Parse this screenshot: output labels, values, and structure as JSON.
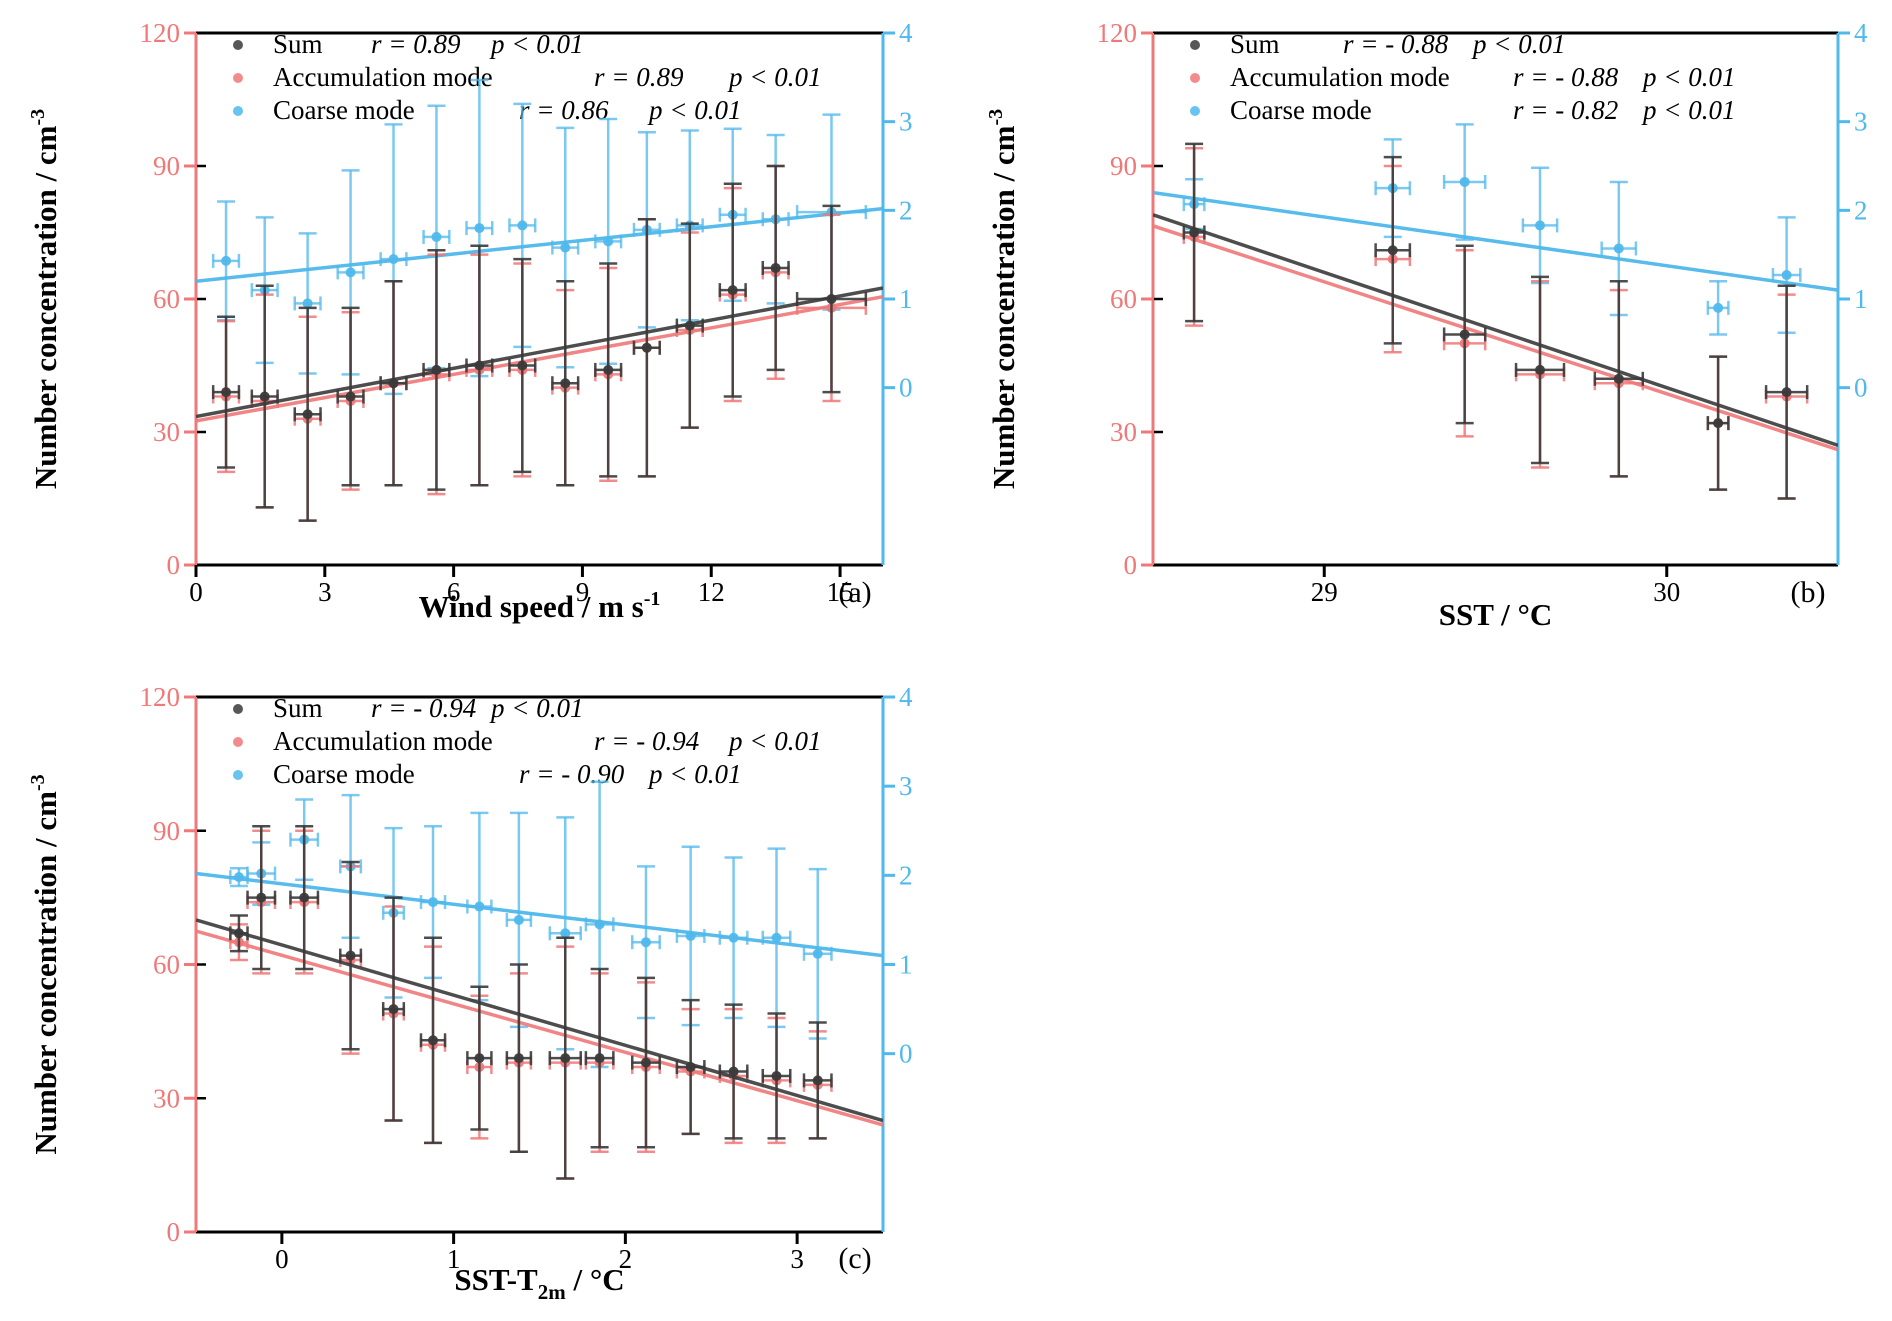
{
  "colors": {
    "sum": "#3a3a3a",
    "accumulation": "#f07878",
    "coarse": "#4fb8ec",
    "left_axis": "#f07878",
    "right_axis": "#4fb8ec",
    "frame": "#000000"
  },
  "chart_data": [
    {
      "type": "scatter",
      "panel_label": "(a)",
      "xlabel": "Wind speed / m s",
      "xlabel_sup": "-1",
      "xlabel_sub": "",
      "xlabel_suffix": "",
      "ylabel": "Number concentration / cm",
      "ylabel_sup": "-3",
      "xlim": [
        0,
        16
      ],
      "xticks": [
        0,
        3,
        6,
        9,
        12,
        15
      ],
      "ylim_left": [
        0,
        120
      ],
      "yticks_left": [
        0,
        30,
        60,
        90,
        120
      ],
      "ylim_right": [
        -2,
        4
      ],
      "yticks_right": [
        0,
        1,
        2,
        3,
        4
      ],
      "legend": [
        {
          "name": "Sum",
          "r": "r = 0.89",
          "p": "p < 0.01"
        },
        {
          "name": "Accumulation mode",
          "r": "r = 0.89",
          "p": "p < 0.01"
        },
        {
          "name": "Coarse mode",
          "r": "r = 0.86",
          "p": "p < 0.01"
        }
      ],
      "series": [
        {
          "key": "sum",
          "axis": "left",
          "x": [
            0.7,
            1.6,
            2.6,
            3.6,
            4.6,
            5.6,
            6.6,
            7.6,
            8.6,
            9.6,
            10.5,
            11.5,
            12.5,
            13.5,
            14.8
          ],
          "y": [
            39,
            38,
            34,
            38,
            41,
            44,
            45,
            45,
            41,
            44,
            49,
            54,
            62,
            67,
            60
          ],
          "yerr": [
            17,
            25,
            24,
            20,
            23,
            27,
            27,
            24,
            23,
            24,
            29,
            23,
            24,
            23,
            21
          ],
          "xerr": [
            0.3,
            0.3,
            0.3,
            0.3,
            0.3,
            0.3,
            0.3,
            0.3,
            0.3,
            0.3,
            0.3,
            0.3,
            0.3,
            0.3,
            0.8
          ],
          "fit": [
            [
              0,
              33.5
            ],
            [
              16,
              62.5
            ]
          ]
        },
        {
          "key": "accumulation",
          "axis": "left",
          "x": [
            0.7,
            1.6,
            2.6,
            3.6,
            4.6,
            5.6,
            6.6,
            7.6,
            8.6,
            9.6,
            10.5,
            11.5,
            12.5,
            13.5,
            14.8
          ],
          "y": [
            38,
            37,
            33,
            37,
            41,
            43,
            44,
            44,
            40,
            43,
            49,
            53,
            61,
            66,
            58
          ],
          "yerr": [
            17,
            24,
            23,
            20,
            23,
            27,
            26,
            24,
            22,
            24,
            29,
            22,
            24,
            24,
            21
          ],
          "xerr": [
            0.3,
            0.3,
            0.3,
            0.3,
            0.3,
            0.3,
            0.3,
            0.3,
            0.3,
            0.3,
            0.3,
            0.3,
            0.3,
            0.3,
            0.8
          ],
          "fit": [
            [
              0,
              32.5
            ],
            [
              16,
              60.5
            ]
          ]
        },
        {
          "key": "coarse",
          "axis": "right",
          "x": [
            0.7,
            1.6,
            2.6,
            3.6,
            4.6,
            5.6,
            6.6,
            7.6,
            8.6,
            9.6,
            10.5,
            11.5,
            12.5,
            13.5,
            14.8
          ],
          "y": [
            1.43,
            1.1,
            0.95,
            1.3,
            1.45,
            1.7,
            1.8,
            1.83,
            1.58,
            1.65,
            1.78,
            1.83,
            1.95,
            1.9,
            1.98
          ],
          "yerr": [
            0.67,
            0.82,
            0.79,
            1.15,
            1.52,
            1.48,
            1.67,
            1.37,
            1.35,
            1.38,
            1.1,
            1.07,
            0.97,
            0.95,
            1.1
          ],
          "xerr": [
            0.3,
            0.3,
            0.3,
            0.3,
            0.3,
            0.3,
            0.3,
            0.3,
            0.3,
            0.3,
            0.3,
            0.3,
            0.3,
            0.3,
            0.8
          ],
          "fit": [
            [
              0,
              1.2
            ],
            [
              16,
              2.02
            ]
          ]
        }
      ]
    },
    {
      "type": "scatter",
      "panel_label": "(b)",
      "xlabel": "SST / °C",
      "xlabel_sup": "",
      "xlabel_sub": "",
      "xlabel_suffix": "",
      "ylabel": "Number concentration / cm",
      "ylabel_sup": "-3",
      "xlim": [
        28.5,
        30.5
      ],
      "xticks": [
        29,
        30
      ],
      "ylim_left": [
        0,
        120
      ],
      "yticks_left": [
        0,
        30,
        60,
        90,
        120
      ],
      "ylim_right": [
        -2,
        4
      ],
      "yticks_right": [
        0,
        1,
        2,
        3,
        4
      ],
      "legend": [
        {
          "name": "Sum",
          "r": "r = - 0.88",
          "p": "p < 0.01"
        },
        {
          "name": "Accumulation mode",
          "r": "r = - 0.88",
          "p": "p < 0.01"
        },
        {
          "name": "Coarse mode",
          "r": "r = - 0.82",
          "p": "p < 0.01"
        }
      ],
      "series": [
        {
          "key": "sum",
          "axis": "left",
          "x": [
            28.62,
            29.2,
            29.41,
            29.63,
            29.86,
            30.15,
            30.35
          ],
          "y": [
            75,
            71,
            52,
            44,
            42,
            32,
            39
          ],
          "yerr": [
            20,
            21,
            20,
            21,
            22,
            15,
            24
          ],
          "xerr": [
            0.03,
            0.05,
            0.06,
            0.07,
            0.07,
            0.03,
            0.06
          ],
          "fit": [
            [
              28.5,
              79
            ],
            [
              30.5,
              27
            ]
          ]
        },
        {
          "key": "accumulation",
          "axis": "left",
          "x": [
            28.62,
            29.2,
            29.41,
            29.63,
            29.86,
            30.15,
            30.35
          ],
          "y": [
            74,
            69,
            50,
            43,
            41,
            32,
            38
          ],
          "yerr": [
            20,
            21,
            21,
            21,
            21,
            15,
            23
          ],
          "xerr": [
            0.03,
            0.05,
            0.06,
            0.07,
            0.07,
            0.03,
            0.06
          ],
          "fit": [
            [
              28.5,
              76.5
            ],
            [
              30.5,
              26
            ]
          ]
        },
        {
          "key": "coarse",
          "axis": "right",
          "x": [
            28.62,
            29.2,
            29.41,
            29.63,
            29.86,
            30.15,
            30.35
          ],
          "y": [
            2.07,
            2.25,
            2.32,
            1.83,
            1.57,
            0.9,
            1.27
          ],
          "yerr": [
            0.28,
            0.55,
            0.65,
            0.65,
            0.75,
            0.3,
            0.65
          ],
          "xerr": [
            0.03,
            0.05,
            0.06,
            0.05,
            0.05,
            0.03,
            0.04
          ],
          "fit": [
            [
              28.5,
              2.2
            ],
            [
              30.5,
              1.1
            ]
          ]
        }
      ]
    },
    {
      "type": "scatter",
      "panel_label": "(c)",
      "xlabel": "SST-T",
      "xlabel_sup": "",
      "xlabel_sub": "2m",
      "xlabel_suffix": " / °C",
      "ylabel": "Number concentration / cm",
      "ylabel_sup": "-3",
      "xlim": [
        -0.5,
        3.5
      ],
      "xticks": [
        0,
        1,
        2,
        3
      ],
      "ylim_left": [
        0,
        120
      ],
      "yticks_left": [
        0,
        30,
        60,
        90,
        120
      ],
      "ylim_right": [
        -2,
        4
      ],
      "yticks_right": [
        0,
        1,
        2,
        3,
        4
      ],
      "legend": [
        {
          "name": "Sum",
          "r": "r = - 0.94",
          "p": "p < 0.01"
        },
        {
          "name": "Accumulation mode",
          "r": "r = - 0.94",
          "p": "p < 0.01"
        },
        {
          "name": "Coarse mode",
          "r": "r = - 0.90",
          "p": "p < 0.01"
        }
      ],
      "series": [
        {
          "key": "sum",
          "axis": "left",
          "x": [
            -0.25,
            -0.12,
            0.13,
            0.4,
            0.65,
            0.88,
            1.15,
            1.38,
            1.65,
            1.85,
            2.12,
            2.38,
            2.63,
            2.88,
            3.12
          ],
          "y": [
            67,
            75,
            75,
            62,
            50,
            43,
            39,
            39,
            39,
            39,
            38,
            37,
            36,
            35,
            34
          ],
          "yerr": [
            4,
            16,
            16,
            21,
            25,
            23,
            16,
            21,
            27,
            20,
            19,
            15,
            15,
            14,
            13
          ],
          "xerr": [
            0.05,
            0.08,
            0.08,
            0.06,
            0.06,
            0.07,
            0.07,
            0.07,
            0.09,
            0.08,
            0.08,
            0.08,
            0.08,
            0.08,
            0.08
          ],
          "fit": [
            [
              -0.5,
              70
            ],
            [
              3.5,
              25
            ]
          ]
        },
        {
          "key": "accumulation",
          "axis": "left",
          "x": [
            -0.25,
            -0.12,
            0.13,
            0.4,
            0.65,
            0.88,
            1.15,
            1.38,
            1.65,
            1.85,
            2.12,
            2.38,
            2.63,
            2.88,
            3.12
          ],
          "y": [
            65,
            74,
            74,
            61,
            49,
            42,
            37,
            38,
            38,
            38,
            37,
            36,
            35,
            34,
            33
          ],
          "yerr": [
            4,
            16,
            16,
            21,
            24,
            22,
            16,
            20,
            26,
            20,
            19,
            14,
            15,
            14,
            12
          ],
          "xerr": [
            0.05,
            0.08,
            0.08,
            0.06,
            0.06,
            0.07,
            0.07,
            0.07,
            0.09,
            0.08,
            0.08,
            0.08,
            0.08,
            0.08,
            0.08
          ],
          "fit": [
            [
              -0.5,
              67.5
            ],
            [
              3.5,
              24
            ]
          ]
        },
        {
          "key": "coarse",
          "axis": "right",
          "x": [
            -0.25,
            -0.12,
            0.13,
            0.4,
            0.65,
            0.88,
            1.15,
            1.38,
            1.65,
            1.85,
            2.12,
            2.38,
            2.63,
            2.88,
            3.12
          ],
          "y": [
            1.98,
            2.02,
            2.4,
            2.1,
            1.58,
            1.7,
            1.65,
            1.5,
            1.35,
            1.45,
            1.25,
            1.32,
            1.3,
            1.3,
            1.12
          ],
          "yerr": [
            0.1,
            0.35,
            0.45,
            0.8,
            0.95,
            0.85,
            1.05,
            1.2,
            1.3,
            1.6,
            0.85,
            1.0,
            0.9,
            1.0,
            0.95
          ],
          "xerr": [
            0.05,
            0.08,
            0.08,
            0.06,
            0.06,
            0.07,
            0.07,
            0.07,
            0.09,
            0.08,
            0.08,
            0.08,
            0.08,
            0.08,
            0.08
          ],
          "fit": [
            [
              -0.5,
              2.02
            ],
            [
              3.5,
              1.1
            ]
          ]
        }
      ]
    }
  ]
}
